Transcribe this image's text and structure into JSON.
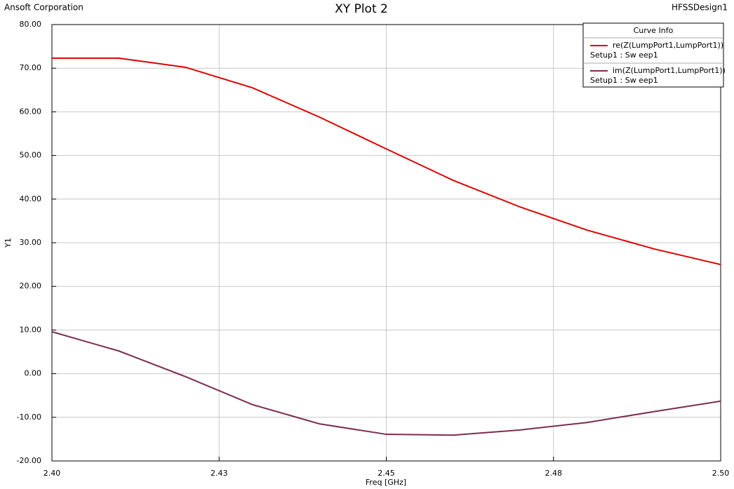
{
  "chart_data": {
    "type": "line",
    "title": "XY Plot 2",
    "company": "Ansoft Corporation",
    "design": "HFSSDesign1",
    "xlabel": "Freq [GHz]",
    "ylabel": "Y1",
    "legend_title": "Curve Info",
    "legend_position": "upper right",
    "grid": true,
    "x": [
      2.4,
      2.41,
      2.42,
      2.43,
      2.44,
      2.45,
      2.46,
      2.47,
      2.48,
      2.49,
      2.5
    ],
    "series": [
      {
        "name": "re(Z(LumpPort1,LumpPort1))",
        "setup": "Setup1 : Sw eep1",
        "color": "#e00000",
        "values": [
          72.3,
          72.3,
          70.2,
          65.5,
          58.8,
          51.5,
          44.3,
          38.2,
          32.9,
          28.6,
          25.0
        ]
      },
      {
        "name": "im(Z(LumpPort1,LumpPort1))",
        "setup": "Setup1 : Sw eep1",
        "color": "#7b2d52",
        "values": [
          9.6,
          5.2,
          -0.7,
          -7.1,
          -11.5,
          -13.9,
          -14.1,
          -12.9,
          -11.2,
          -8.7,
          -6.3
        ]
      }
    ],
    "xlim": [
      2.4,
      2.5
    ],
    "xticks": [
      {
        "value": 2.4,
        "label": "2.40"
      },
      {
        "value": 2.425,
        "label": "2.43"
      },
      {
        "value": 2.45,
        "label": "2.45"
      },
      {
        "value": 2.475,
        "label": "2.48"
      },
      {
        "value": 2.5,
        "label": "2.50"
      }
    ],
    "ylim": [
      -20,
      80
    ],
    "yticks": [
      {
        "value": -20,
        "label": "-20.00"
      },
      {
        "value": -10,
        "label": "-10.00"
      },
      {
        "value": 0,
        "label": "0.00"
      },
      {
        "value": 10,
        "label": "10.00"
      },
      {
        "value": 20,
        "label": "20.00"
      },
      {
        "value": 30,
        "label": "30.00"
      },
      {
        "value": 40,
        "label": "40.00"
      },
      {
        "value": 50,
        "label": "50.00"
      },
      {
        "value": 60,
        "label": "60.00"
      },
      {
        "value": 70,
        "label": "70.00"
      },
      {
        "value": 80,
        "label": "80.00"
      }
    ]
  }
}
